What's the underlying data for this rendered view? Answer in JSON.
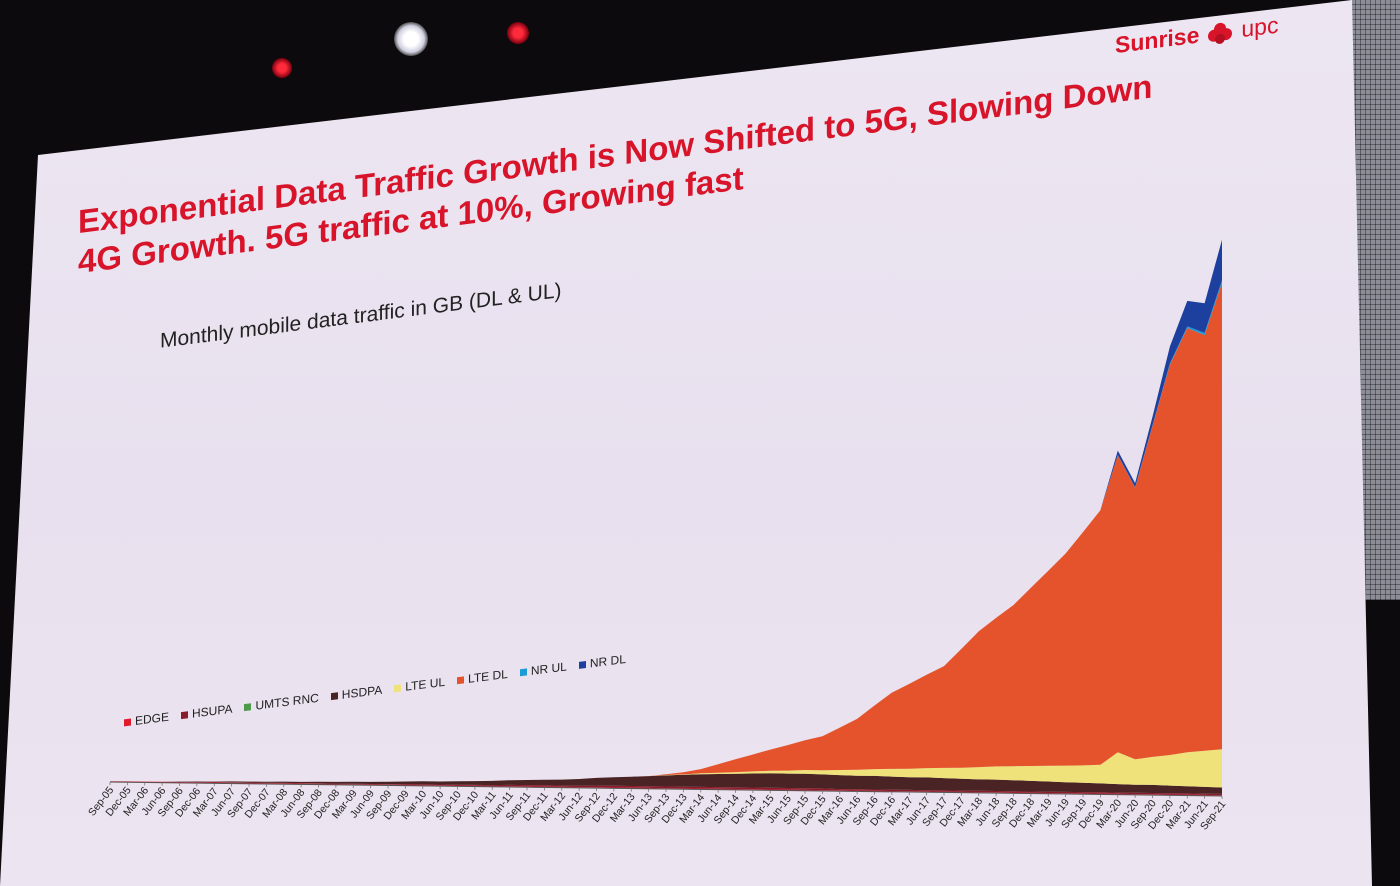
{
  "slide": {
    "title_line1": "Exponential Data Traffic Growth is Now Shifted to 5G, Slowing Down",
    "title_line2": "4G Growth. 5G traffic at 10%, Growing fast",
    "logo_brand": "Sunrise",
    "logo_suffix": "upc",
    "colors": {
      "accent": "#d7142a",
      "slide_bg": "#ebe3f0"
    }
  },
  "chart_data": {
    "type": "area",
    "title": "Monthly mobile data traffic in GB (DL & UL)",
    "stacked": true,
    "legend_position": "bottom-left",
    "grid": false,
    "y_axis_labels": false,
    "categories": [
      "Sep-05",
      "Dec-05",
      "Mar-06",
      "Jun-06",
      "Sep-06",
      "Dec-06",
      "Mar-07",
      "Jun-07",
      "Sep-07",
      "Dec-07",
      "Mar-08",
      "Jun-08",
      "Sep-08",
      "Dec-08",
      "Mar-09",
      "Jun-09",
      "Sep-09",
      "Dec-09",
      "Mar-10",
      "Jun-10",
      "Sep-10",
      "Dec-10",
      "Mar-11",
      "Jun-11",
      "Sep-11",
      "Dec-11",
      "Mar-12",
      "Jun-12",
      "Sep-12",
      "Dec-12",
      "Mar-13",
      "Jun-13",
      "Sep-13",
      "Dec-13",
      "Mar-14",
      "Jun-14",
      "Sep-14",
      "Dec-14",
      "Mar-15",
      "Jun-15",
      "Sep-15",
      "Dec-15",
      "Mar-16",
      "Jun-16",
      "Sep-16",
      "Dec-16",
      "Mar-17",
      "Jun-17",
      "Sep-17",
      "Dec-17",
      "Mar-18",
      "Jun-18",
      "Sep-18",
      "Dec-18",
      "Mar-19",
      "Jun-19",
      "Sep-19",
      "Dec-19",
      "Mar-20",
      "Jun-20",
      "Sep-20",
      "Dec-20",
      "Mar-21",
      "Jun-21",
      "Sep-21"
    ],
    "series": [
      {
        "name": "EDGE",
        "color": "#e0192b",
        "values": [
          0.2,
          0.2,
          0.2,
          0.2,
          0.2,
          0.2,
          0.2,
          0.2,
          0.2,
          0.2,
          0.2,
          0.2,
          0.2,
          0.2,
          0.2,
          0.2,
          0.2,
          0.2,
          0.2,
          0.2,
          0.2,
          0.2,
          0.2,
          0.2,
          0.2,
          0.2,
          0.2,
          0.2,
          0.2,
          0.2,
          0.2,
          0.2,
          0.2,
          0.2,
          0.2,
          0.2,
          0.2,
          0.2,
          0.2,
          0.2,
          0.2,
          0.2,
          0.2,
          0.2,
          0.2,
          0.2,
          0.2,
          0.2,
          0.2,
          0.2,
          0.2,
          0.2,
          0.2,
          0.2,
          0.2,
          0.2,
          0.2,
          0.2,
          0.2,
          0.2,
          0.2,
          0.2,
          0.2,
          0.2,
          0.2
        ]
      },
      {
        "name": "HSUPA",
        "color": "#8b1a2a",
        "values": [
          0,
          0,
          0,
          0,
          0,
          0.1,
          0.1,
          0.1,
          0.1,
          0.1,
          0.1,
          0.1,
          0.1,
          0.1,
          0.1,
          0.1,
          0.1,
          0.2,
          0.2,
          0.2,
          0.2,
          0.2,
          0.2,
          0.3,
          0.3,
          0.3,
          0.3,
          0.3,
          0.4,
          0.4,
          0.4,
          0.4,
          0.4,
          0.4,
          0.4,
          0.4,
          0.4,
          0.4,
          0.4,
          0.4,
          0.4,
          0.4,
          0.3,
          0.3,
          0.3,
          0.3,
          0.3,
          0.3,
          0.3,
          0.3,
          0.3,
          0.3,
          0.3,
          0.3,
          0.3,
          0.3,
          0.3,
          0.3,
          0.3,
          0.3,
          0.3,
          0.3,
          0.3,
          0.3,
          0.3
        ]
      },
      {
        "name": "UMTS RNC",
        "color": "#4e9a4a",
        "values": [
          0,
          0,
          0,
          0,
          0,
          0,
          0,
          0,
          0,
          0,
          0,
          0,
          0,
          0,
          0,
          0,
          0,
          0,
          0,
          0,
          0,
          0,
          0,
          0,
          0,
          0,
          0,
          0,
          0,
          0,
          0,
          0,
          0,
          0,
          0,
          0,
          0,
          0,
          0,
          0,
          0,
          0,
          0,
          0,
          0,
          0,
          0,
          0,
          0,
          0,
          0,
          0,
          0,
          0,
          0,
          0,
          0,
          0,
          0,
          0,
          0,
          0,
          0,
          0,
          0
        ]
      },
      {
        "name": "HSDPA",
        "color": "#4a2424",
        "values": [
          0,
          0,
          0,
          0,
          0.1,
          0.1,
          0.1,
          0.2,
          0.2,
          0.2,
          0.3,
          0.3,
          0.4,
          0.4,
          0.5,
          0.5,
          0.6,
          0.6,
          0.7,
          0.7,
          0.8,
          0.9,
          1.0,
          1.1,
          1.2,
          1.3,
          1.4,
          1.6,
          1.8,
          2.0,
          2.2,
          2.4,
          2.6,
          2.8,
          3.0,
          3.1,
          3.2,
          3.3,
          3.4,
          3.4,
          3.4,
          3.3,
          3.3,
          3.2,
          3.2,
          3.1,
          3.0,
          3.0,
          2.9,
          2.8,
          2.7,
          2.7,
          2.6,
          2.5,
          2.4,
          2.3,
          2.2,
          2.1,
          2.0,
          1.9,
          1.9,
          1.8,
          1.7,
          1.6,
          1.5
        ]
      },
      {
        "name": "LTE UL",
        "color": "#efe27a",
        "values": [
          0,
          0,
          0,
          0,
          0,
          0,
          0,
          0,
          0,
          0,
          0,
          0,
          0,
          0,
          0,
          0,
          0,
          0,
          0,
          0,
          0,
          0,
          0,
          0,
          0,
          0,
          0,
          0,
          0,
          0,
          0,
          0,
          0.1,
          0.1,
          0.2,
          0.3,
          0.4,
          0.5,
          0.6,
          0.7,
          0.9,
          1.0,
          1.2,
          1.4,
          1.6,
          1.8,
          2.0,
          2.2,
          2.4,
          2.6,
          2.9,
          3.1,
          3.3,
          3.5,
          3.7,
          3.9,
          4.1,
          4.4,
          7.5,
          6.0,
          6.6,
          7.2,
          8.0,
          8.5,
          9.0
        ]
      },
      {
        "name": "LTE DL",
        "color": "#e4532c",
        "values": [
          0,
          0,
          0,
          0,
          0,
          0,
          0,
          0,
          0,
          0,
          0,
          0,
          0,
          0,
          0,
          0,
          0,
          0,
          0,
          0,
          0,
          0,
          0,
          0,
          0,
          0,
          0,
          0,
          0,
          0,
          0,
          0,
          0.2,
          0.5,
          1,
          2,
          3,
          4,
          5,
          6,
          7,
          8,
          10,
          12,
          15,
          18,
          20,
          22,
          24,
          28,
          32,
          35,
          38,
          42,
          46,
          50,
          55,
          60,
          70,
          64,
          78,
          92,
          100,
          98,
          110
        ]
      },
      {
        "name": "NR UL",
        "color": "#1e9ad6",
        "values": [
          0,
          0,
          0,
          0,
          0,
          0,
          0,
          0,
          0,
          0,
          0,
          0,
          0,
          0,
          0,
          0,
          0,
          0,
          0,
          0,
          0,
          0,
          0,
          0,
          0,
          0,
          0,
          0,
          0,
          0,
          0,
          0,
          0,
          0,
          0,
          0,
          0,
          0,
          0,
          0,
          0,
          0,
          0,
          0,
          0,
          0,
          0,
          0,
          0,
          0,
          0,
          0,
          0,
          0,
          0,
          0,
          0,
          0,
          0.1,
          0.1,
          0.2,
          0.3,
          0.4,
          0.5,
          0.6
        ]
      },
      {
        "name": "NR DL",
        "color": "#1d3f9e",
        "values": [
          0,
          0,
          0,
          0,
          0,
          0,
          0,
          0,
          0,
          0,
          0,
          0,
          0,
          0,
          0,
          0,
          0,
          0,
          0,
          0,
          0,
          0,
          0,
          0,
          0,
          0,
          0,
          0,
          0,
          0,
          0,
          0,
          0,
          0,
          0,
          0,
          0,
          0,
          0,
          0,
          0,
          0,
          0,
          0,
          0,
          0,
          0,
          0,
          0,
          0,
          0,
          0,
          0,
          0,
          0,
          0,
          0,
          0,
          1.0,
          1.0,
          2.0,
          4.0,
          6.0,
          7.0,
          9.5
        ]
      }
    ]
  }
}
